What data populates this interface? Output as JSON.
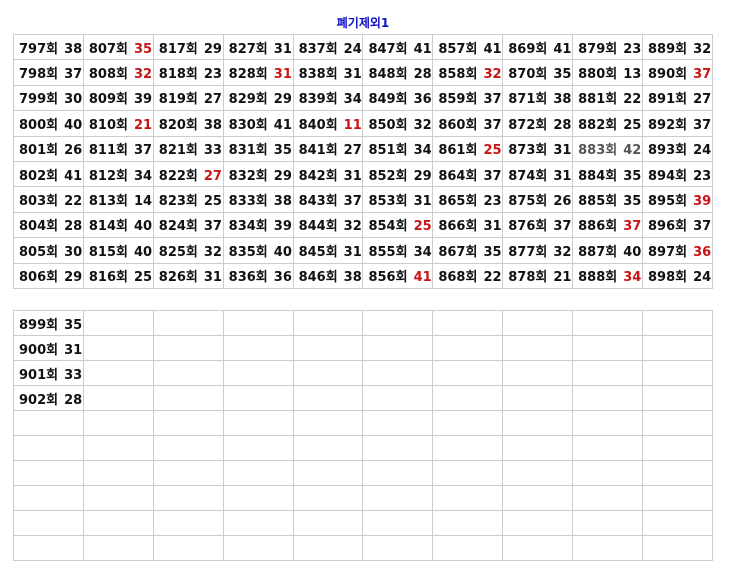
{
  "title": "폐기제외1",
  "colors": {
    "red": "#c81414",
    "gray": "#555555",
    "title": "#1010c8"
  },
  "main_table": {
    "rows": [
      [
        [
          "797회",
          "38"
        ],
        [
          "807회",
          "35",
          "red"
        ],
        [
          "817회",
          "29"
        ],
        [
          "827회",
          "31"
        ],
        [
          "837회",
          "24"
        ],
        [
          "847회",
          "41"
        ],
        [
          "857회",
          "41"
        ],
        [
          "869회",
          "41"
        ],
        [
          "879회",
          "23"
        ],
        [
          "889회",
          "32"
        ]
      ],
      [
        [
          "798회",
          "37"
        ],
        [
          "808회",
          "32",
          "red"
        ],
        [
          "818회",
          "23"
        ],
        [
          "828회",
          "31",
          "red"
        ],
        [
          "838회",
          "31"
        ],
        [
          "848회",
          "28"
        ],
        [
          "858회",
          "32",
          "red"
        ],
        [
          "870회",
          "35"
        ],
        [
          "880회",
          "13"
        ],
        [
          "890회",
          "37",
          "red"
        ]
      ],
      [
        [
          "799회",
          "30"
        ],
        [
          "809회",
          "39"
        ],
        [
          "819회",
          "27"
        ],
        [
          "829회",
          "29"
        ],
        [
          "839회",
          "34"
        ],
        [
          "849회",
          "36"
        ],
        [
          "859회",
          "37"
        ],
        [
          "871회",
          "38"
        ],
        [
          "881회",
          "22"
        ],
        [
          "891회",
          "27"
        ]
      ],
      [
        [
          "800회",
          "40"
        ],
        [
          "810회",
          "21",
          "red"
        ],
        [
          "820회",
          "38"
        ],
        [
          "830회",
          "41"
        ],
        [
          "840회",
          "11",
          "red"
        ],
        [
          "850회",
          "32"
        ],
        [
          "860회",
          "37"
        ],
        [
          "872회",
          "28"
        ],
        [
          "882회",
          "25"
        ],
        [
          "892회",
          "37"
        ]
      ],
      [
        [
          "801회",
          "26"
        ],
        [
          "811회",
          "37"
        ],
        [
          "821회",
          "33"
        ],
        [
          "831회",
          "35"
        ],
        [
          "841회",
          "27"
        ],
        [
          "851회",
          "34"
        ],
        [
          "861회",
          "25",
          "red"
        ],
        [
          "873회",
          "31"
        ],
        [
          "883회",
          "42",
          "gray"
        ],
        [
          "893회",
          "24"
        ]
      ],
      [
        [
          "802회",
          "41"
        ],
        [
          "812회",
          "34"
        ],
        [
          "822회",
          "27",
          "red"
        ],
        [
          "832회",
          "29"
        ],
        [
          "842회",
          "31"
        ],
        [
          "852회",
          "29"
        ],
        [
          "864회",
          "37"
        ],
        [
          "874회",
          "31"
        ],
        [
          "884회",
          "35"
        ],
        [
          "894회",
          "23"
        ]
      ],
      [
        [
          "803회",
          "22"
        ],
        [
          "813회",
          "14"
        ],
        [
          "823회",
          "25"
        ],
        [
          "833회",
          "38"
        ],
        [
          "843회",
          "37"
        ],
        [
          "853회",
          "31"
        ],
        [
          "865회",
          "23"
        ],
        [
          "875회",
          "26"
        ],
        [
          "885회",
          "35"
        ],
        [
          "895회",
          "39",
          "red"
        ]
      ],
      [
        [
          "804회",
          "28"
        ],
        [
          "814회",
          "40"
        ],
        [
          "824회",
          "37"
        ],
        [
          "834회",
          "39"
        ],
        [
          "844회",
          "32"
        ],
        [
          "854회",
          "25",
          "red"
        ],
        [
          "866회",
          "31"
        ],
        [
          "876회",
          "37"
        ],
        [
          "886회",
          "37",
          "red"
        ],
        [
          "896회",
          "37"
        ]
      ],
      [
        [
          "805회",
          "30"
        ],
        [
          "815회",
          "40"
        ],
        [
          "825회",
          "32"
        ],
        [
          "835회",
          "40"
        ],
        [
          "845회",
          "31"
        ],
        [
          "855회",
          "34"
        ],
        [
          "867회",
          "35"
        ],
        [
          "877회",
          "32"
        ],
        [
          "887회",
          "40"
        ],
        [
          "897회",
          "36",
          "red"
        ]
      ],
      [
        [
          "806회",
          "29"
        ],
        [
          "816회",
          "25"
        ],
        [
          "826회",
          "31"
        ],
        [
          "836회",
          "36"
        ],
        [
          "846회",
          "38"
        ],
        [
          "856회",
          "41",
          "red"
        ],
        [
          "868회",
          "22"
        ],
        [
          "878회",
          "21"
        ],
        [
          "888회",
          "34",
          "red"
        ],
        [
          "898회",
          "24"
        ]
      ]
    ]
  },
  "second_table": {
    "rows": [
      [
        [
          "899회",
          "35"
        ]
      ],
      [
        [
          "900회",
          "31"
        ]
      ],
      [
        [
          "901회",
          "33"
        ]
      ],
      [
        [
          "902회",
          "28"
        ]
      ],
      [],
      [],
      [],
      [],
      [],
      []
    ]
  }
}
